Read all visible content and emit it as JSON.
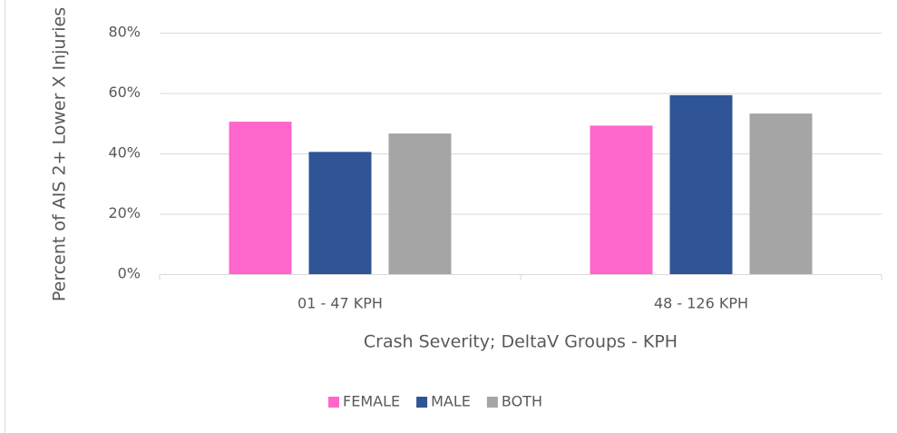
{
  "chart_data": {
    "type": "bar",
    "x_label": "Crash Severity; DeltaV Groups - KPH",
    "y_label": "Percent of AIS 2+ Lower X Injuries",
    "categories": [
      "01 - 47 KPH",
      "48 - 126 KPH"
    ],
    "series": [
      {
        "name": "FEMALE",
        "color": "#ff66cc",
        "values": [
          50.5,
          49.2
        ]
      },
      {
        "name": "MALE",
        "color": "#2f5597",
        "values": [
          40.5,
          59.3
        ]
      },
      {
        "name": "BOTH",
        "color": "#a5a5a5",
        "values": [
          46.6,
          53.2
        ]
      }
    ],
    "ylim": [
      0,
      80
    ],
    "yticks": [
      {
        "value": 0,
        "label": "0%"
      },
      {
        "value": 20,
        "label": "20%"
      },
      {
        "value": 40,
        "label": "40%"
      },
      {
        "value": 60,
        "label": "60%"
      },
      {
        "value": 80,
        "label": "80%"
      }
    ],
    "grid": true,
    "legend": "bottom"
  }
}
